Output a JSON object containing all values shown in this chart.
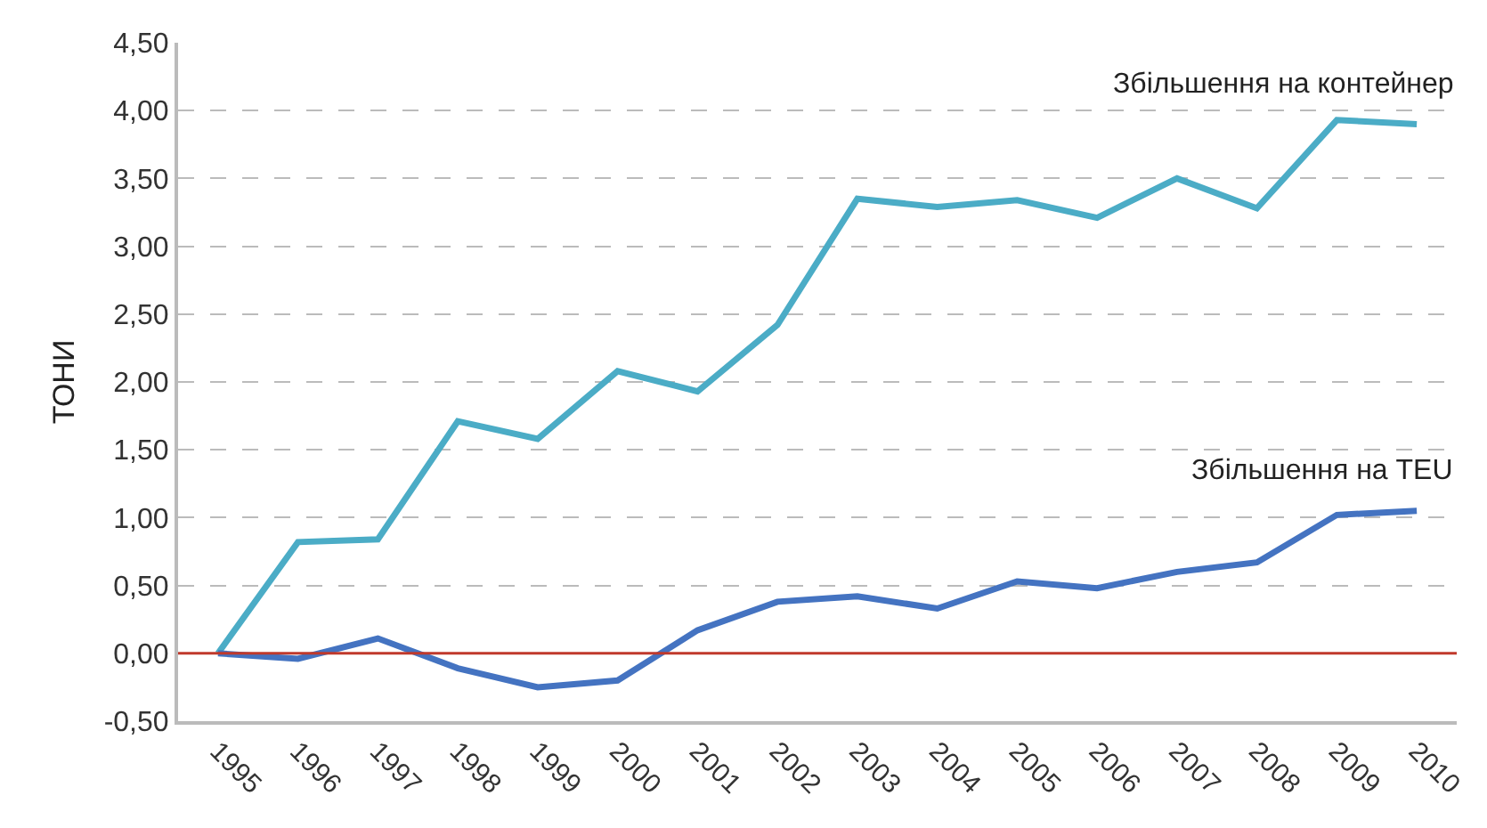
{
  "chart_data": {
    "type": "line",
    "ylabel": "ТОНИ",
    "categories": [
      "1995",
      "1996",
      "1997",
      "1998",
      "1999",
      "2000",
      "2001",
      "2002",
      "2003",
      "2004",
      "2005",
      "2006",
      "2007",
      "2008",
      "2009",
      "2010"
    ],
    "series": [
      {
        "name": "Збільшення на контейнер",
        "color": "#4bacc6",
        "values": [
          0,
          0.82,
          0.84,
          1.71,
          1.58,
          2.08,
          1.93,
          2.42,
          3.35,
          3.29,
          3.34,
          3.21,
          3.5,
          3.28,
          3.93,
          3.9
        ]
      },
      {
        "name": "Збільшення на TEU",
        "color": "#4473c1",
        "values": [
          0,
          -0.04,
          0.11,
          -0.11,
          -0.25,
          -0.2,
          0.17,
          0.38,
          0.42,
          0.33,
          0.53,
          0.48,
          0.6,
          0.67,
          1.02,
          1.05
        ]
      }
    ],
    "ylim": [
      -0.5,
      4.5
    ],
    "yticks": [
      {
        "value": -0.5,
        "label": "-0,50"
      },
      {
        "value": 0,
        "label": "0,00"
      },
      {
        "value": 0.5,
        "label": "0,50"
      },
      {
        "value": 1,
        "label": "1,00"
      },
      {
        "value": 1.5,
        "label": "1,50"
      },
      {
        "value": 2,
        "label": "2,00"
      },
      {
        "value": 2.5,
        "label": "2,50"
      },
      {
        "value": 3,
        "label": "3,00"
      },
      {
        "value": 3.5,
        "label": "3,50"
      },
      {
        "value": 4,
        "label": "4,00"
      },
      {
        "value": 4.5,
        "label": "4,50"
      }
    ],
    "ref_lines": [
      {
        "axis": "y",
        "value": 0,
        "color": "#c0392b"
      }
    ],
    "grid": "y",
    "legend": false,
    "marker": "none",
    "line_style": "solid"
  }
}
